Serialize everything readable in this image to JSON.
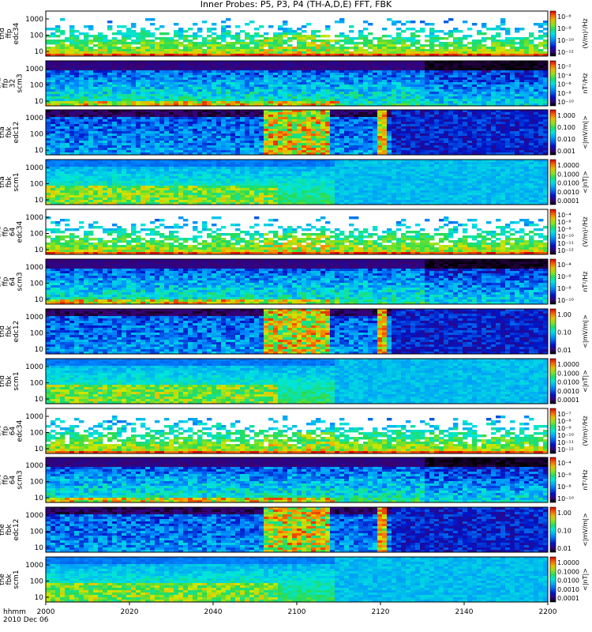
{
  "chart_data": {
    "type": "heatmap",
    "title": "Inner Probes: P5, P3, P4 (TH-A,D,E) FFT, FBK",
    "x_axis": {
      "label_line1": "hhmm",
      "label_line2": "2010 Dec 06",
      "range": [
        "2000",
        "2200"
      ],
      "ticks": [
        "2000",
        "2020",
        "2040",
        "2100",
        "2120",
        "2140",
        "2200"
      ]
    },
    "panels": [
      {
        "label": [
          "thd",
          "ffp",
          "edc34"
        ],
        "label_alt": [
          "tha",
          "ffp",
          "32",
          "edc34"
        ],
        "yticks": [
          "1000",
          "100",
          "10"
        ],
        "cb_ticks": [
          "10⁻⁶",
          "10⁻⁸",
          "10⁻¹⁰",
          "10⁻¹²"
        ],
        "units": "(V/m)²/Hz",
        "style": "spiky"
      },
      {
        "label": [
          "tha",
          "ffp",
          "32",
          "scm3"
        ],
        "yticks": [
          "1000",
          "100",
          "10"
        ],
        "cb_ticks": [
          "10⁻²",
          "10⁻⁴",
          "10⁻⁶",
          "10⁻⁸",
          "10⁻¹⁰"
        ],
        "units": "nT²/Hz",
        "style": "scm"
      },
      {
        "label": [
          "tha",
          "fbk",
          "edc12"
        ],
        "yticks": [
          "1000",
          "100",
          "10"
        ],
        "cb_ticks": [
          "1.000",
          "0.100",
          "0.010",
          "0.001"
        ],
        "units": "<|mV/m|>",
        "style": "fbk_e"
      },
      {
        "label": [
          "tha",
          "fbk",
          "scm1"
        ],
        "yticks": [
          "1000",
          "100",
          "10"
        ],
        "cb_ticks": [
          "1.0000",
          "0.1000",
          "0.0100",
          "0.0010",
          "0.0001"
        ],
        "units": "<|nT|>",
        "style": "fbk_b"
      },
      {
        "label": [
          "thd",
          "ffp",
          "64",
          "edc34"
        ],
        "yticks": [
          "1000",
          "100",
          "10"
        ],
        "cb_ticks": [
          "10⁻⁴",
          "10⁻⁶",
          "10⁻⁸",
          "10⁻¹⁰",
          "10⁻¹¹",
          "10⁻¹²"
        ],
        "units": "(V/m)²/Hz",
        "style": "spiky"
      },
      {
        "label": [
          "thd",
          "ffp",
          "64",
          "scm3"
        ],
        "yticks": [
          "1000",
          "100",
          "10"
        ],
        "cb_ticks": [
          "10⁻⁴",
          "10⁻⁶",
          "10⁻⁸",
          "10⁻¹⁰"
        ],
        "units": "nT²/Hz",
        "style": "scm"
      },
      {
        "label": [
          "thd",
          "fbk",
          "edc12"
        ],
        "yticks": [
          "1000",
          "100",
          "10"
        ],
        "cb_ticks": [
          "1.00",
          "0.10",
          "0.01"
        ],
        "units": "<|mV/m|>",
        "style": "fbk_e"
      },
      {
        "label": [
          "thd",
          "fbk",
          "scm1"
        ],
        "yticks": [
          "1000",
          "100",
          "10"
        ],
        "cb_ticks": [
          "1.0000",
          "0.1000",
          "0.0100",
          "0.0010",
          "0.0001"
        ],
        "units": "<|nT|>",
        "style": "fbk_b"
      },
      {
        "label": [
          "the",
          "ffp",
          "64",
          "edc34"
        ],
        "yticks": [
          "1000",
          "100",
          "10"
        ],
        "cb_ticks": [
          "10⁻⁷",
          "10⁻⁸",
          "10⁻⁹",
          "10⁻¹⁰",
          "10⁻¹¹",
          "10⁻¹²"
        ],
        "units": "(V/m)²/Hz",
        "style": "spiky"
      },
      {
        "label": [
          "the",
          "ffp",
          "64",
          "scm3"
        ],
        "yticks": [
          "1000",
          "100",
          "10"
        ],
        "cb_ticks": [
          "10⁻⁴",
          "10⁻⁶",
          "10⁻⁸",
          "10⁻¹⁰"
        ],
        "units": "nT²/Hz",
        "style": "scm"
      },
      {
        "label": [
          "the",
          "fbk",
          "edc12"
        ],
        "yticks": [
          "1000",
          "100",
          "10"
        ],
        "cb_ticks": [
          "1.00",
          "0.10",
          "0.01"
        ],
        "units": "<|mV/m|>",
        "style": "fbk_e"
      },
      {
        "label": [
          "the",
          "fbk",
          "scm1"
        ],
        "yticks": [
          "1000",
          "100",
          "10"
        ],
        "cb_ticks": [
          "1.0000",
          "0.1000",
          "0.0100",
          "0.0010",
          "0.0001"
        ],
        "units": "<|nT|>",
        "style": "fbk_b"
      }
    ]
  }
}
